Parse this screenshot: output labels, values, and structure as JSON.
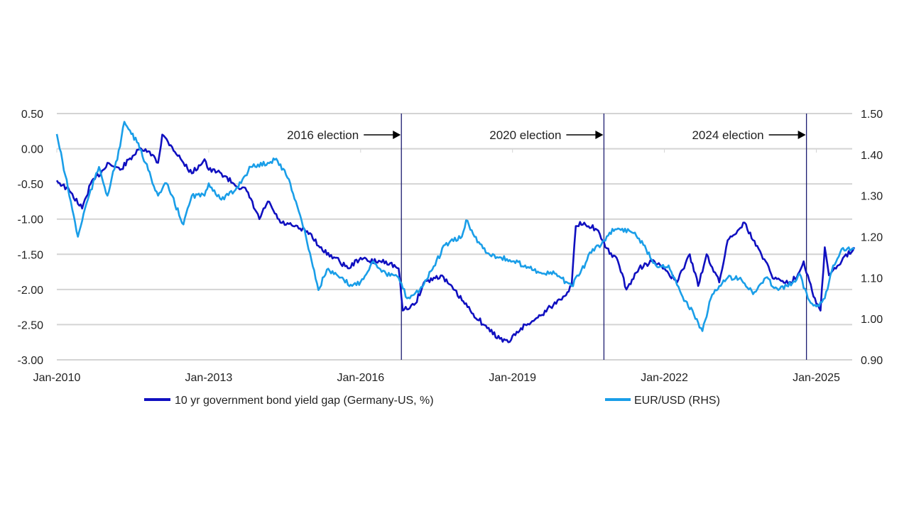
{
  "chart_data": {
    "type": "line",
    "title": "",
    "xlabel": "",
    "ylabel": "",
    "x_ticks": [
      "Jan-2010",
      "Jan-2013",
      "Jan-2016",
      "Jan-2019",
      "Jan-2022",
      "Jan-2025"
    ],
    "y_left_ticks": [
      "0.50",
      "0.00",
      "-0.50",
      "-1.00",
      "-1.50",
      "-2.00",
      "-2.50",
      "-3.00"
    ],
    "y_right_ticks": [
      "1.50",
      "1.40",
      "1.30",
      "1.20",
      "1.10",
      "1.00",
      "0.90"
    ],
    "ylim_left": [
      -3.0,
      0.5
    ],
    "ylim_right": [
      0.9,
      1.5
    ],
    "xlim": [
      "2010-01",
      "2025-10"
    ],
    "grid": true,
    "legend_position": "bottom",
    "annotations": [
      {
        "label": "2016 election",
        "date": "2016-11"
      },
      {
        "label": "2020 election",
        "date": "2020-11"
      },
      {
        "label": "2024 election",
        "date": "2024-11"
      }
    ],
    "series": [
      {
        "name": "10 yr government bond yield gap (Germany-US, %)",
        "axis": "left",
        "color": "#1010c0",
        "points": [
          [
            "2010-01",
            -0.45
          ],
          [
            "2010-04",
            -0.6
          ],
          [
            "2010-07",
            -0.85
          ],
          [
            "2010-09",
            -0.5
          ],
          [
            "2010-12",
            -0.3
          ],
          [
            "2011-01",
            -0.2
          ],
          [
            "2011-04",
            -0.3
          ],
          [
            "2011-07",
            -0.1
          ],
          [
            "2011-09",
            0
          ],
          [
            "2011-12",
            -0.1
          ],
          [
            "2012-01",
            -0.2
          ],
          [
            "2012-02",
            0.2
          ],
          [
            "2012-04",
            0.05
          ],
          [
            "2012-07",
            -0.2
          ],
          [
            "2012-09",
            -0.35
          ],
          [
            "2012-12",
            -0.15
          ],
          [
            "2013-01",
            -0.3
          ],
          [
            "2013-04",
            -0.35
          ],
          [
            "2013-07",
            -0.5
          ],
          [
            "2013-10",
            -0.6
          ],
          [
            "2014-01",
            -1.0
          ],
          [
            "2014-03",
            -0.75
          ],
          [
            "2014-06",
            -1.05
          ],
          [
            "2014-09",
            -1.1
          ],
          [
            "2015-01",
            -1.2
          ],
          [
            "2015-04",
            -1.45
          ],
          [
            "2015-07",
            -1.55
          ],
          [
            "2015-10",
            -1.7
          ],
          [
            "2016-01",
            -1.55
          ],
          [
            "2016-03",
            -1.6
          ],
          [
            "2016-07",
            -1.6
          ],
          [
            "2016-10",
            -1.7
          ],
          [
            "2016-11",
            -2.3
          ],
          [
            "2017-02",
            -2.2
          ],
          [
            "2017-04",
            -1.9
          ],
          [
            "2017-08",
            -1.8
          ],
          [
            "2017-11",
            -2.0
          ],
          [
            "2018-03",
            -2.3
          ],
          [
            "2018-07",
            -2.55
          ],
          [
            "2018-10",
            -2.7
          ],
          [
            "2018-12",
            -2.75
          ],
          [
            "2019-03",
            -2.55
          ],
          [
            "2019-07",
            -2.4
          ],
          [
            "2019-10",
            -2.25
          ],
          [
            "2020-01",
            -2.1
          ],
          [
            "2020-03",
            -1.95
          ],
          [
            "2020-04",
            -1.1
          ],
          [
            "2020-06",
            -1.05
          ],
          [
            "2020-09",
            -1.15
          ],
          [
            "2020-11",
            -1.4
          ],
          [
            "2021-02",
            -1.6
          ],
          [
            "2021-04",
            -2.0
          ],
          [
            "2021-07",
            -1.7
          ],
          [
            "2021-10",
            -1.6
          ],
          [
            "2022-01",
            -1.7
          ],
          [
            "2022-04",
            -1.9
          ],
          [
            "2022-07",
            -1.5
          ],
          [
            "2022-09",
            -1.95
          ],
          [
            "2022-11",
            -1.5
          ],
          [
            "2023-02",
            -1.9
          ],
          [
            "2023-04",
            -1.3
          ],
          [
            "2023-08",
            -1.05
          ],
          [
            "2023-10",
            -1.3
          ],
          [
            "2024-01",
            -1.6
          ],
          [
            "2024-03",
            -1.85
          ],
          [
            "2024-07",
            -1.9
          ],
          [
            "2024-09",
            -1.75
          ],
          [
            "2024-10",
            -1.6
          ],
          [
            "2025-01",
            -2.2
          ],
          [
            "2025-02",
            -2.3
          ],
          [
            "2025-03",
            -1.4
          ],
          [
            "2025-04",
            -1.8
          ],
          [
            "2025-07",
            -1.6
          ],
          [
            "2025-10",
            -1.4
          ]
        ]
      },
      {
        "name": "EUR/USD (RHS)",
        "axis": "right",
        "color": "#1a9ee8",
        "points": [
          [
            "2010-01",
            1.45
          ],
          [
            "2010-03",
            1.35
          ],
          [
            "2010-06",
            1.2
          ],
          [
            "2010-08",
            1.28
          ],
          [
            "2010-11",
            1.37
          ],
          [
            "2011-01",
            1.3
          ],
          [
            "2011-04",
            1.42
          ],
          [
            "2011-05",
            1.48
          ],
          [
            "2011-08",
            1.43
          ],
          [
            "2011-10",
            1.38
          ],
          [
            "2012-01",
            1.3
          ],
          [
            "2012-03",
            1.33
          ],
          [
            "2012-07",
            1.23
          ],
          [
            "2012-09",
            1.3
          ],
          [
            "2012-12",
            1.3
          ],
          [
            "2013-01",
            1.33
          ],
          [
            "2013-04",
            1.29
          ],
          [
            "2013-07",
            1.31
          ],
          [
            "2013-11",
            1.37
          ],
          [
            "2014-03",
            1.38
          ],
          [
            "2014-05",
            1.39
          ],
          [
            "2014-08",
            1.34
          ],
          [
            "2014-11",
            1.24
          ],
          [
            "2015-01",
            1.16
          ],
          [
            "2015-03",
            1.07
          ],
          [
            "2015-05",
            1.12
          ],
          [
            "2015-08",
            1.1
          ],
          [
            "2015-11",
            1.08
          ],
          [
            "2016-01",
            1.09
          ],
          [
            "2016-04",
            1.14
          ],
          [
            "2016-07",
            1.11
          ],
          [
            "2016-10",
            1.1
          ],
          [
            "2016-12",
            1.05
          ],
          [
            "2017-03",
            1.07
          ],
          [
            "2017-06",
            1.12
          ],
          [
            "2017-09",
            1.18
          ],
          [
            "2018-01",
            1.2
          ],
          [
            "2018-02",
            1.24
          ],
          [
            "2018-04",
            1.2
          ],
          [
            "2018-07",
            1.16
          ],
          [
            "2018-10",
            1.15
          ],
          [
            "2019-01",
            1.14
          ],
          [
            "2019-04",
            1.13
          ],
          [
            "2019-08",
            1.11
          ],
          [
            "2019-11",
            1.11
          ],
          [
            "2020-03",
            1.08
          ],
          [
            "2020-05",
            1.11
          ],
          [
            "2020-08",
            1.17
          ],
          [
            "2020-10",
            1.18
          ],
          [
            "2020-12",
            1.21
          ],
          [
            "2021-02",
            1.22
          ],
          [
            "2021-06",
            1.21
          ],
          [
            "2021-08",
            1.18
          ],
          [
            "2021-11",
            1.13
          ],
          [
            "2022-02",
            1.13
          ],
          [
            "2022-05",
            1.06
          ],
          [
            "2022-08",
            1.01
          ],
          [
            "2022-10",
            0.97
          ],
          [
            "2022-12",
            1.05
          ],
          [
            "2023-02",
            1.08
          ],
          [
            "2023-04",
            1.1
          ],
          [
            "2023-07",
            1.1
          ],
          [
            "2023-10",
            1.06
          ],
          [
            "2024-01",
            1.1
          ],
          [
            "2024-04",
            1.07
          ],
          [
            "2024-08",
            1.09
          ],
          [
            "2024-09",
            1.11
          ],
          [
            "2024-11",
            1.05
          ],
          [
            "2025-01",
            1.03
          ],
          [
            "2025-03",
            1.05
          ],
          [
            "2025-05",
            1.13
          ],
          [
            "2025-07",
            1.17
          ],
          [
            "2025-10",
            1.17
          ]
        ]
      }
    ]
  }
}
